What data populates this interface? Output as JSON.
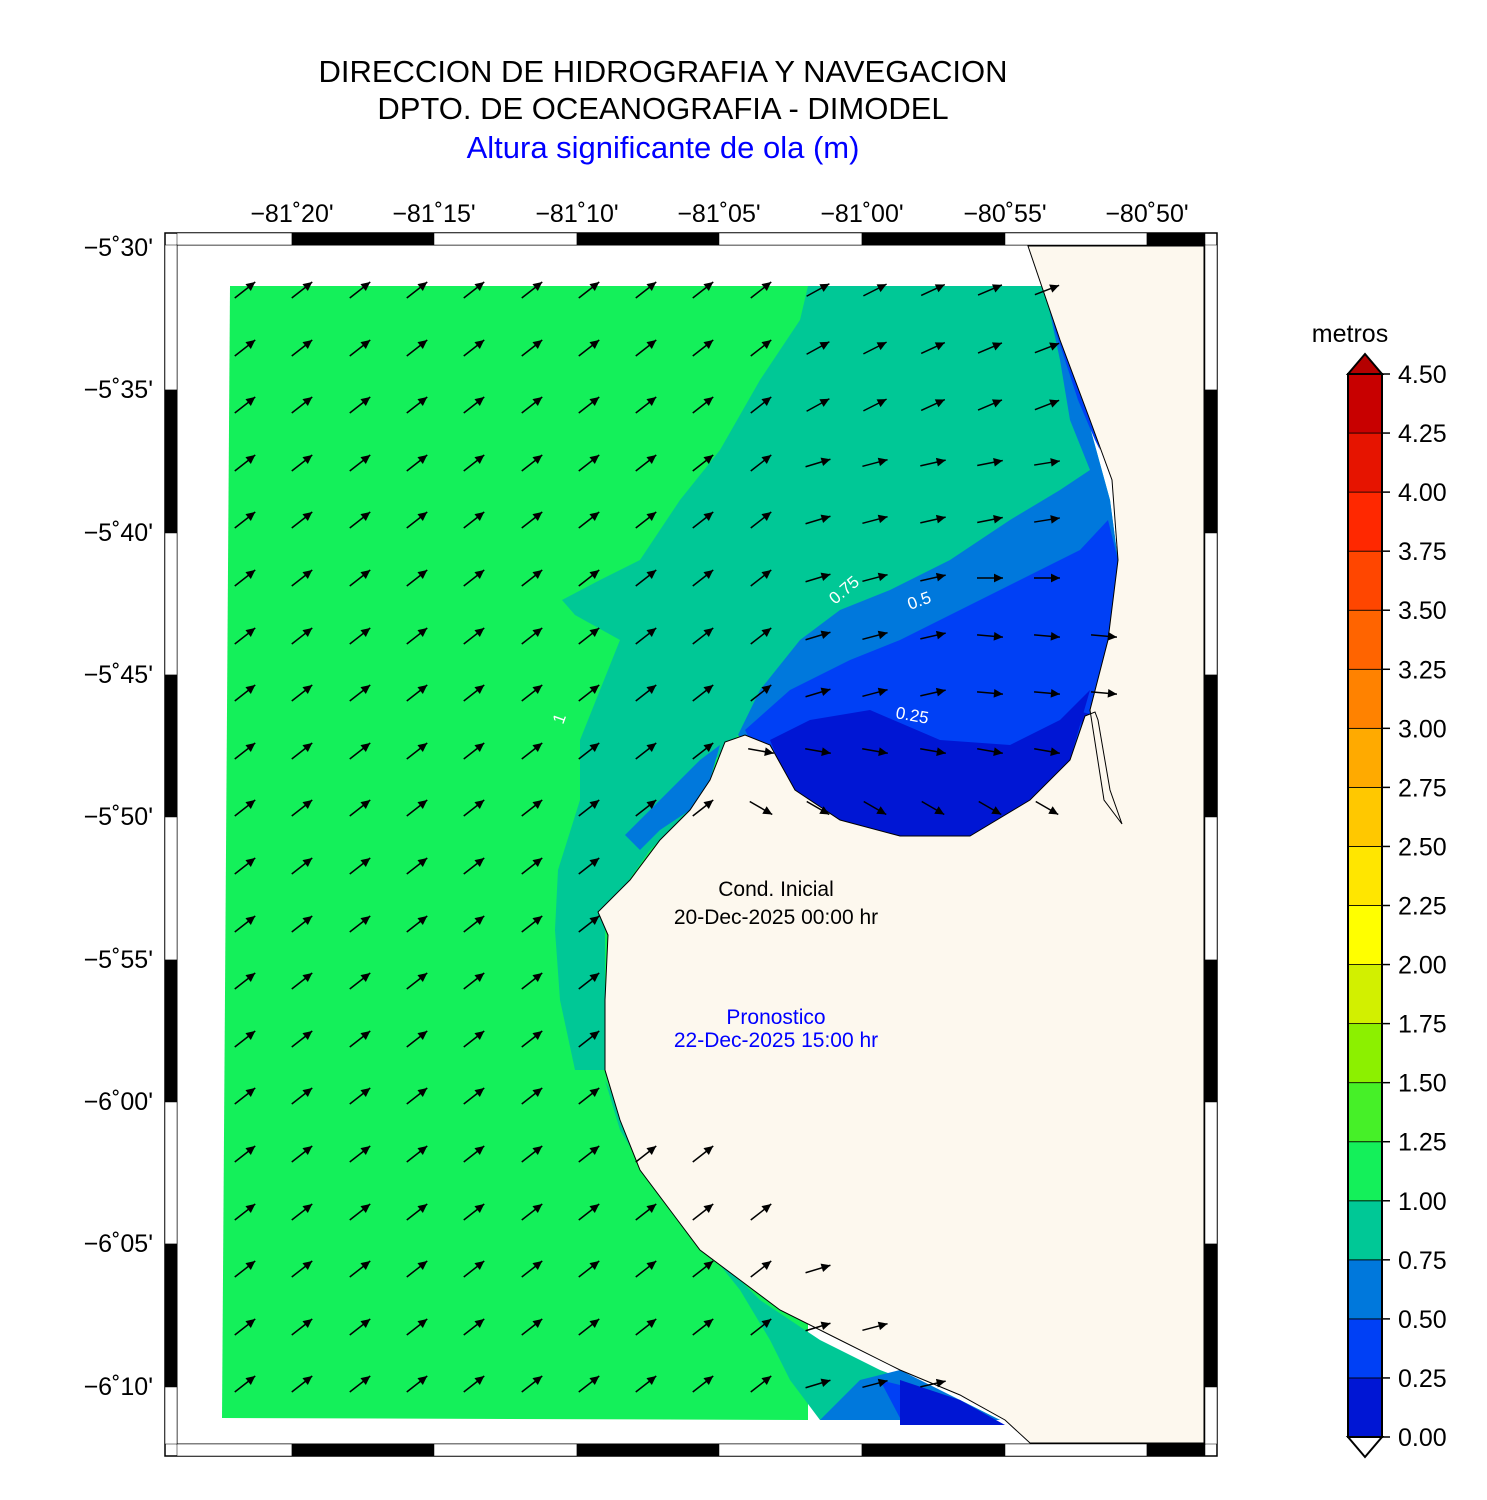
{
  "header": {
    "title1": "DIRECCION DE HIDROGRAFIA Y NAVEGACION",
    "title2": "DPTO. DE OCEANOGRAFIA - DIMODEL",
    "title3": "Altura significante de ola (m)"
  },
  "axes": {
    "x_ticks": [
      "−81˚20'",
      "−81˚15'",
      "−81˚10'",
      "−81˚05'",
      "−81˚00'",
      "−80˚55'",
      "−80˚50'"
    ],
    "y_ticks": [
      "−5˚30'",
      "−5˚35'",
      "−5˚40'",
      "−5˚45'",
      "−5˚50'",
      "−5˚55'",
      "−6˚00'",
      "−6˚05'",
      "−6˚10'"
    ]
  },
  "contour_labels": [
    "0.75",
    "0.5",
    "0.25",
    "1"
  ],
  "annotations": {
    "cond_label": "Cond. Inicial",
    "cond_date": "20-Dec-2025 00:00 hr",
    "forecast_label": "Pronostico",
    "forecast_date": "22-Dec-2025 15:00 hr"
  },
  "colorbar": {
    "unit": "metros",
    "ticks": [
      "4.50",
      "4.25",
      "4.00",
      "3.75",
      "3.50",
      "3.25",
      "3.00",
      "2.75",
      "2.50",
      "2.25",
      "2.00",
      "1.75",
      "1.50",
      "1.25",
      "1.00",
      "0.75",
      "0.50",
      "0.25",
      "0.00"
    ],
    "colors": [
      "#0016d4",
      "#0040f5",
      "#0078dc",
      "#00c896",
      "#14f05a",
      "#46f028",
      "#8cf000",
      "#d2f000",
      "#ffff00",
      "#ffe600",
      "#ffc800",
      "#ffaa00",
      "#ff8200",
      "#ff6400",
      "#ff4600",
      "#ff2800",
      "#e61400",
      "#c80000"
    ]
  },
  "colors": {
    "land": "#fdf8ee",
    "sea_high": "#14f05a",
    "sea_mid": "#00c896",
    "sea_low": "#0078dc",
    "sea_lower": "#0040f5",
    "sea_lowest": "#0016d4",
    "title_blue": "#0000ff"
  }
}
